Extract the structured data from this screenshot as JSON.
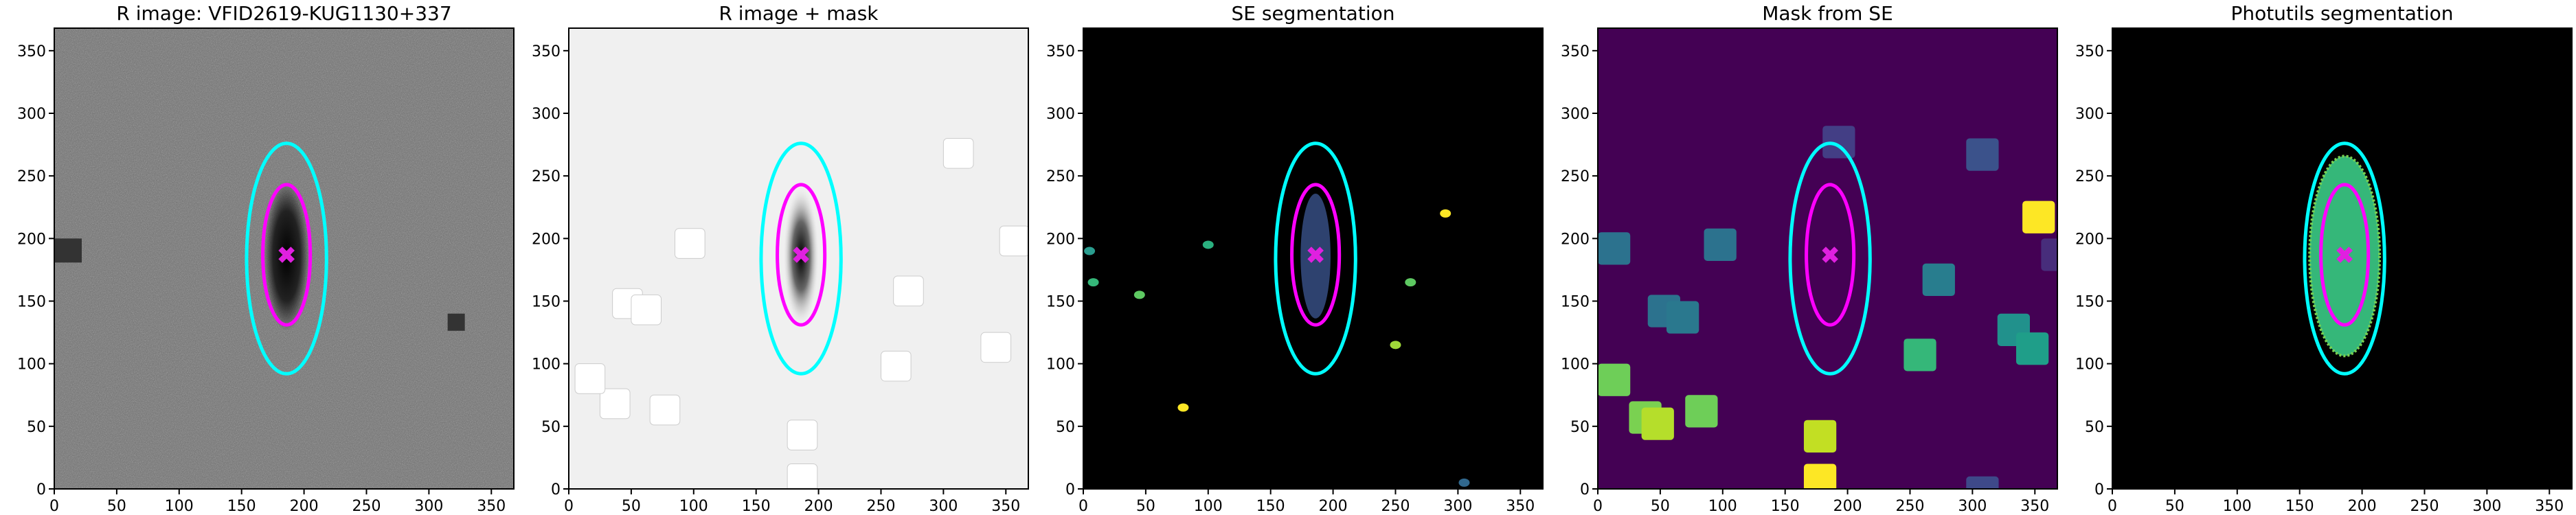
{
  "chart_data": [
    {
      "type": "image",
      "title": "R image: VFID2619-KUG1130+337",
      "background": "#6e6e6e",
      "xlim": [
        0,
        368
      ],
      "ylim": [
        0,
        368
      ],
      "xticks": [
        0,
        50,
        100,
        150,
        200,
        250,
        300,
        350
      ],
      "yticks": [
        0,
        50,
        100,
        150,
        200,
        250,
        300,
        350
      ]
    },
    {
      "type": "image",
      "title": "R image + mask",
      "background": "#f0f0f0",
      "xlim": [
        0,
        368
      ],
      "ylim": [
        0,
        368
      ],
      "xticks": [
        0,
        50,
        100,
        150,
        200,
        250,
        300,
        350
      ],
      "yticks": [
        0,
        50,
        100,
        150,
        200,
        250,
        300,
        350
      ]
    },
    {
      "type": "image",
      "title": "SE segmentation",
      "background": "#000000",
      "xlim": [
        0,
        368
      ],
      "ylim": [
        0,
        368
      ],
      "xticks": [
        0,
        50,
        100,
        150,
        200,
        250,
        300,
        350
      ],
      "yticks": [
        0,
        50,
        100,
        150,
        200,
        250,
        300,
        350
      ]
    },
    {
      "type": "image",
      "title": "Mask from SE",
      "background": "#440154",
      "xlim": [
        0,
        368
      ],
      "ylim": [
        0,
        368
      ],
      "xticks": [
        0,
        50,
        100,
        150,
        200,
        250,
        300,
        350
      ],
      "yticks": [
        0,
        50,
        100,
        150,
        200,
        250,
        300,
        350
      ]
    },
    {
      "type": "image",
      "title": "Photutils segmentation",
      "background": "#000000",
      "xlim": [
        0,
        368
      ],
      "ylim": [
        0,
        368
      ],
      "xticks": [
        0,
        50,
        100,
        150,
        200,
        250,
        300,
        350
      ],
      "yticks": [
        0,
        50,
        100,
        150,
        200,
        250,
        300,
        350
      ]
    }
  ],
  "ellipses": [
    {
      "center": [
        186,
        184
      ],
      "width": 64,
      "height": 184,
      "color": "#00ffff"
    },
    {
      "center": [
        186,
        187
      ],
      "width": 38,
      "height": 112,
      "color": "#ff00ff"
    }
  ]
}
